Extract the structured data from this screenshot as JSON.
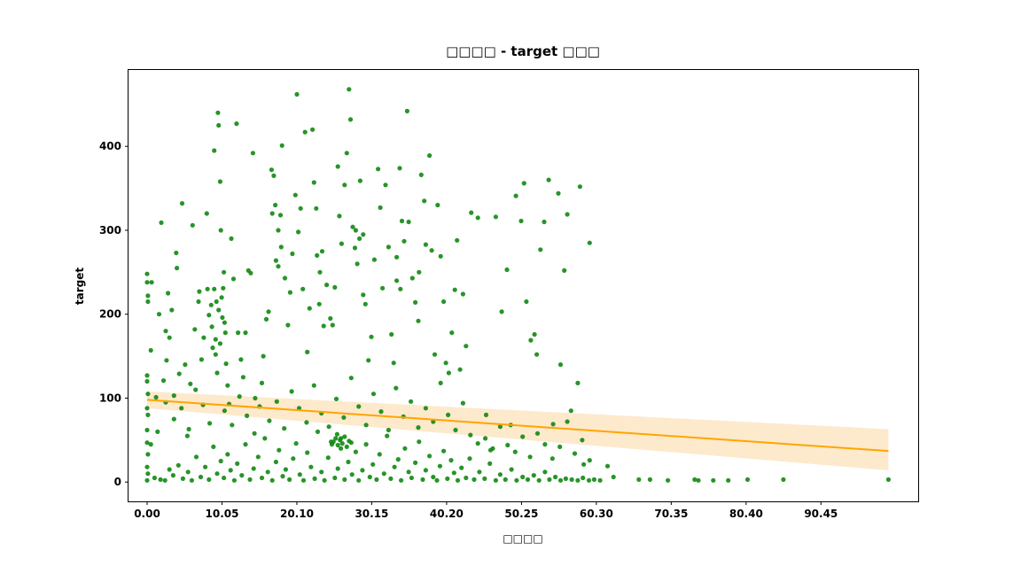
{
  "chart_data": {
    "type": "scatter",
    "title": "□□□□ - target □□□",
    "xlabel": "□□□□",
    "ylabel": "target",
    "x_ticks": [
      0.0,
      10.05,
      20.1,
      30.15,
      40.2,
      50.25,
      60.3,
      70.35,
      80.4,
      90.45
    ],
    "x_tick_labels": [
      "0.00",
      "10.05",
      "20.10",
      "30.15",
      "40.20",
      "50.25",
      "60.30",
      "70.35",
      "80.40",
      "90.45"
    ],
    "y_ticks": [
      0,
      100,
      200,
      300,
      400
    ],
    "y_tick_labels": [
      "0",
      "100",
      "200",
      "300",
      "400"
    ],
    "xlim": [
      -2.5,
      103.5
    ],
    "ylim": [
      -23,
      491
    ],
    "grid": false,
    "colors": {
      "points": "#118811",
      "fit_line": "#ffa500",
      "confidence_band": "#fde9cc"
    },
    "regression": {
      "x": [
        0,
        99.5
      ],
      "y": [
        98,
        37
      ],
      "ci_upper": [
        108,
        63
      ],
      "ci_lower": [
        88,
        14
      ]
    },
    "points": [
      [
        0.0,
        248
      ],
      [
        0.0,
        238
      ],
      [
        0.1,
        222
      ],
      [
        0.1,
        215
      ],
      [
        0.0,
        127
      ],
      [
        0.0,
        120
      ],
      [
        0.1,
        105
      ],
      [
        0.0,
        88
      ],
      [
        0.1,
        80
      ],
      [
        0.0,
        62
      ],
      [
        0.0,
        47
      ],
      [
        0.1,
        33
      ],
      [
        0.0,
        18
      ],
      [
        0.1,
        10
      ],
      [
        0.0,
        2
      ],
      [
        0.5,
        157
      ],
      [
        0.6,
        238
      ],
      [
        1.2,
        101
      ],
      [
        1.6,
        200
      ],
      [
        1.9,
        309
      ],
      [
        2.2,
        121
      ],
      [
        2.5,
        180
      ],
      [
        2.6,
        145
      ],
      [
        2.8,
        225
      ],
      [
        3.0,
        172
      ],
      [
        3.3,
        205
      ],
      [
        3.6,
        103
      ],
      [
        3.9,
        273
      ],
      [
        4.0,
        255
      ],
      [
        4.3,
        129
      ],
      [
        4.7,
        332
      ],
      [
        5.1,
        140
      ],
      [
        5.4,
        55
      ],
      [
        5.8,
        117
      ],
      [
        6.1,
        306
      ],
      [
        6.4,
        182
      ],
      [
        6.9,
        215
      ],
      [
        7.0,
        227
      ],
      [
        7.3,
        146
      ],
      [
        7.6,
        172
      ],
      [
        8.0,
        320
      ],
      [
        8.1,
        230
      ],
      [
        8.3,
        199
      ],
      [
        8.6,
        211
      ],
      [
        8.7,
        185
      ],
      [
        9.0,
        395
      ],
      [
        9.2,
        152
      ],
      [
        9.5,
        440
      ],
      [
        9.6,
        425
      ],
      [
        9.8,
        358
      ],
      [
        9.9,
        300
      ],
      [
        10.1,
        196
      ],
      [
        10.2,
        231
      ],
      [
        10.3,
        250
      ],
      [
        10.5,
        178
      ],
      [
        10.6,
        141
      ],
      [
        10.8,
        115
      ],
      [
        11.0,
        93
      ],
      [
        11.3,
        290
      ],
      [
        11.6,
        242
      ],
      [
        12.0,
        427
      ],
      [
        12.2,
        178
      ],
      [
        12.6,
        146
      ],
      [
        12.9,
        125
      ],
      [
        13.2,
        178
      ],
      [
        13.6,
        252
      ],
      [
        13.9,
        249
      ],
      [
        14.2,
        392
      ],
      [
        14.5,
        100
      ],
      [
        15.1,
        90
      ],
      [
        15.6,
        150
      ],
      [
        16.0,
        194
      ],
      [
        16.3,
        203
      ],
      [
        16.7,
        372
      ],
      [
        17.0,
        365
      ],
      [
        17.3,
        264
      ],
      [
        17.6,
        257
      ],
      [
        17.9,
        318
      ],
      [
        18.1,
        401
      ],
      [
        18.5,
        243
      ],
      [
        18.9,
        187
      ],
      [
        19.2,
        226
      ],
      [
        19.5,
        272
      ],
      [
        19.9,
        342
      ],
      [
        20.1,
        462
      ],
      [
        20.3,
        298
      ],
      [
        20.6,
        326
      ],
      [
        20.9,
        230
      ],
      [
        21.2,
        417
      ],
      [
        21.5,
        155
      ],
      [
        21.8,
        207
      ],
      [
        22.2,
        420
      ],
      [
        22.4,
        357
      ],
      [
        22.7,
        326
      ],
      [
        23.1,
        212
      ],
      [
        23.5,
        275
      ],
      [
        23.7,
        186
      ],
      [
        24.1,
        235
      ],
      [
        24.6,
        195
      ],
      [
        24.9,
        187
      ],
      [
        25.2,
        232
      ],
      [
        25.6,
        376
      ],
      [
        25.8,
        317
      ],
      [
        26.1,
        284
      ],
      [
        26.5,
        354
      ],
      [
        26.8,
        392
      ],
      [
        27.1,
        468
      ],
      [
        27.3,
        432
      ],
      [
        27.6,
        304
      ],
      [
        27.9,
        279
      ],
      [
        28.2,
        260
      ],
      [
        28.6,
        359
      ],
      [
        29.0,
        223
      ],
      [
        29.3,
        212
      ],
      [
        29.7,
        145
      ],
      [
        30.1,
        173
      ],
      [
        30.5,
        265
      ],
      [
        31.0,
        373
      ],
      [
        31.3,
        327
      ],
      [
        31.6,
        231
      ],
      [
        32.0,
        354
      ],
      [
        32.4,
        280
      ],
      [
        32.8,
        176
      ],
      [
        33.1,
        142
      ],
      [
        33.5,
        268
      ],
      [
        33.9,
        374
      ],
      [
        34.2,
        311
      ],
      [
        34.5,
        287
      ],
      [
        34.9,
        442
      ],
      [
        35.1,
        310
      ],
      [
        35.6,
        243
      ],
      [
        36.0,
        214
      ],
      [
        36.4,
        192
      ],
      [
        36.8,
        366
      ],
      [
        37.2,
        335
      ],
      [
        37.4,
        283
      ],
      [
        37.9,
        389
      ],
      [
        38.2,
        276
      ],
      [
        38.6,
        152
      ],
      [
        39.0,
        330
      ],
      [
        39.4,
        269
      ],
      [
        39.8,
        215
      ],
      [
        40.1,
        142
      ],
      [
        40.5,
        130
      ],
      [
        40.9,
        178
      ],
      [
        41.3,
        229
      ],
      [
        41.6,
        288
      ],
      [
        42.0,
        134
      ],
      [
        42.4,
        224
      ],
      [
        42.8,
        162
      ],
      [
        43.5,
        321
      ],
      [
        44.4,
        315
      ],
      [
        45.5,
        80
      ],
      [
        46.1,
        38
      ],
      [
        46.8,
        316
      ],
      [
        47.6,
        203
      ],
      [
        48.3,
        253
      ],
      [
        48.8,
        68
      ],
      [
        49.5,
        341
      ],
      [
        50.2,
        311
      ],
      [
        50.6,
        356
      ],
      [
        50.9,
        215
      ],
      [
        51.5,
        169
      ],
      [
        52.0,
        176
      ],
      [
        52.3,
        152
      ],
      [
        52.8,
        277
      ],
      [
        53.3,
        310
      ],
      [
        53.9,
        360
      ],
      [
        54.5,
        69
      ],
      [
        55.2,
        344
      ],
      [
        55.5,
        140
      ],
      [
        56.0,
        252
      ],
      [
        56.4,
        319
      ],
      [
        56.9,
        85
      ],
      [
        57.8,
        118
      ],
      [
        58.1,
        352
      ],
      [
        58.6,
        21
      ],
      [
        59.4,
        285
      ],
      [
        61.8,
        19
      ],
      [
        62.6,
        6
      ],
      [
        66.0,
        3
      ],
      [
        67.5,
        3
      ],
      [
        69.9,
        2
      ],
      [
        73.5,
        3
      ],
      [
        74.0,
        2
      ],
      [
        76.0,
        2
      ],
      [
        78.0,
        2
      ],
      [
        80.6,
        3
      ],
      [
        85.4,
        3
      ],
      [
        99.5,
        3
      ],
      [
        1.0,
        5
      ],
      [
        1.8,
        3
      ],
      [
        2.4,
        2
      ],
      [
        3.0,
        15
      ],
      [
        3.5,
        8
      ],
      [
        4.2,
        20
      ],
      [
        4.8,
        4
      ],
      [
        5.5,
        12
      ],
      [
        6.0,
        2
      ],
      [
        6.6,
        30
      ],
      [
        7.2,
        6
      ],
      [
        7.8,
        18
      ],
      [
        8.3,
        3
      ],
      [
        8.9,
        42
      ],
      [
        9.4,
        10
      ],
      [
        9.9,
        25
      ],
      [
        10.3,
        5
      ],
      [
        10.8,
        33
      ],
      [
        11.2,
        14
      ],
      [
        11.7,
        2
      ],
      [
        12.1,
        22
      ],
      [
        12.7,
        8
      ],
      [
        13.2,
        45
      ],
      [
        13.8,
        3
      ],
      [
        14.3,
        16
      ],
      [
        14.9,
        30
      ],
      [
        15.4,
        5
      ],
      [
        15.8,
        52
      ],
      [
        16.2,
        12
      ],
      [
        16.8,
        2
      ],
      [
        17.3,
        24
      ],
      [
        17.7,
        38
      ],
      [
        18.2,
        7
      ],
      [
        18.6,
        15
      ],
      [
        19.1,
        3
      ],
      [
        19.6,
        28
      ],
      [
        20.0,
        46
      ],
      [
        20.5,
        9
      ],
      [
        21.0,
        2
      ],
      [
        21.5,
        35
      ],
      [
        22.0,
        18
      ],
      [
        22.5,
        4
      ],
      [
        22.9,
        60
      ],
      [
        23.4,
        12
      ],
      [
        23.8,
        2
      ],
      [
        24.3,
        29
      ],
      [
        24.7,
        48
      ],
      [
        25.2,
        5
      ],
      [
        25.6,
        16
      ],
      [
        26.0,
        52
      ],
      [
        26.5,
        3
      ],
      [
        27.0,
        24
      ],
      [
        27.5,
        9
      ],
      [
        28.0,
        36
      ],
      [
        28.4,
        2
      ],
      [
        28.9,
        14
      ],
      [
        29.4,
        45
      ],
      [
        29.9,
        6
      ],
      [
        30.3,
        21
      ],
      [
        30.8,
        3
      ],
      [
        31.2,
        33
      ],
      [
        31.8,
        10
      ],
      [
        32.2,
        55
      ],
      [
        32.7,
        4
      ],
      [
        33.2,
        18
      ],
      [
        33.7,
        27
      ],
      [
        34.1,
        2
      ],
      [
        34.6,
        40
      ],
      [
        35.1,
        12
      ],
      [
        35.5,
        5
      ],
      [
        36.0,
        23
      ],
      [
        36.5,
        48
      ],
      [
        37.0,
        3
      ],
      [
        37.4,
        14
      ],
      [
        37.9,
        31
      ],
      [
        38.4,
        6
      ],
      [
        38.9,
        2
      ],
      [
        39.3,
        19
      ],
      [
        39.8,
        37
      ],
      [
        40.3,
        4
      ],
      [
        40.8,
        26
      ],
      [
        41.2,
        11
      ],
      [
        41.7,
        2
      ],
      [
        42.2,
        17
      ],
      [
        42.8,
        5
      ],
      [
        43.3,
        28
      ],
      [
        43.9,
        3
      ],
      [
        44.6,
        12
      ],
      [
        45.3,
        4
      ],
      [
        46.0,
        22
      ],
      [
        46.8,
        2
      ],
      [
        47.4,
        9
      ],
      [
        48.1,
        3
      ],
      [
        48.9,
        15
      ],
      [
        49.6,
        2
      ],
      [
        50.4,
        6
      ],
      [
        51.1,
        3
      ],
      [
        51.9,
        8
      ],
      [
        52.6,
        2
      ],
      [
        53.4,
        12
      ],
      [
        54.0,
        3
      ],
      [
        54.8,
        6
      ],
      [
        55.5,
        2
      ],
      [
        56.2,
        4
      ],
      [
        57.0,
        3
      ],
      [
        57.8,
        2
      ],
      [
        58.5,
        5
      ],
      [
        59.3,
        2
      ],
      [
        60.0,
        3
      ],
      [
        60.8,
        2
      ],
      [
        0.5,
        45
      ],
      [
        1.4,
        60
      ],
      [
        2.5,
        95
      ],
      [
        3.6,
        75
      ],
      [
        4.6,
        88
      ],
      [
        5.6,
        63
      ],
      [
        6.5,
        110
      ],
      [
        7.5,
        92
      ],
      [
        8.4,
        70
      ],
      [
        9.4,
        130
      ],
      [
        10.4,
        85
      ],
      [
        11.4,
        68
      ],
      [
        12.4,
        102
      ],
      [
        13.4,
        79
      ],
      [
        14.4,
        58
      ],
      [
        15.4,
        118
      ],
      [
        16.4,
        73
      ],
      [
        17.4,
        96
      ],
      [
        18.4,
        64
      ],
      [
        19.4,
        108
      ],
      [
        20.4,
        88
      ],
      [
        21.4,
        71
      ],
      [
        22.4,
        115
      ],
      [
        23.4,
        82
      ],
      [
        24.4,
        66
      ],
      [
        25.4,
        99
      ],
      [
        26.4,
        77
      ],
      [
        27.4,
        124
      ],
      [
        28.4,
        90
      ],
      [
        29.4,
        68
      ],
      [
        30.4,
        105
      ],
      [
        31.4,
        84
      ],
      [
        32.4,
        62
      ],
      [
        33.4,
        112
      ],
      [
        34.4,
        78
      ],
      [
        35.4,
        96
      ],
      [
        36.4,
        65
      ],
      [
        37.4,
        88
      ],
      [
        38.4,
        72
      ],
      [
        39.4,
        118
      ],
      [
        40.4,
        80
      ],
      [
        41.4,
        62
      ],
      [
        42.4,
        94
      ],
      [
        43.4,
        56
      ],
      [
        44.4,
        46
      ],
      [
        45.4,
        52
      ],
      [
        46.4,
        40
      ],
      [
        47.4,
        66
      ],
      [
        48.4,
        44
      ],
      [
        49.4,
        36
      ],
      [
        50.4,
        54
      ],
      [
        51.4,
        30
      ],
      [
        52.4,
        58
      ],
      [
        53.4,
        45
      ],
      [
        54.4,
        28
      ],
      [
        55.4,
        42
      ],
      [
        56.4,
        72
      ],
      [
        57.4,
        34
      ],
      [
        58.4,
        50
      ],
      [
        59.4,
        26
      ],
      [
        25.0,
        48
      ],
      [
        25.3,
        52
      ],
      [
        25.6,
        44
      ],
      [
        25.9,
        50
      ],
      [
        26.2,
        46
      ],
      [
        26.5,
        54
      ],
      [
        26.8,
        42
      ],
      [
        27.1,
        49
      ],
      [
        26.0,
        40
      ],
      [
        25.5,
        57
      ],
      [
        24.8,
        45
      ],
      [
        27.4,
        47
      ],
      [
        9.0,
        230
      ],
      [
        9.3,
        215
      ],
      [
        9.6,
        205
      ],
      [
        10.0,
        220
      ],
      [
        8.8,
        160
      ],
      [
        9.2,
        170
      ],
      [
        9.8,
        165
      ],
      [
        10.4,
        190
      ],
      [
        16.8,
        320
      ],
      [
        17.2,
        330
      ],
      [
        17.6,
        300
      ],
      [
        18.0,
        280
      ],
      [
        22.8,
        270
      ],
      [
        23.2,
        250
      ],
      [
        28.0,
        300
      ],
      [
        28.5,
        290
      ],
      [
        29.0,
        295
      ],
      [
        33.5,
        240
      ],
      [
        34.0,
        230
      ],
      [
        36.5,
        250
      ]
    ]
  }
}
